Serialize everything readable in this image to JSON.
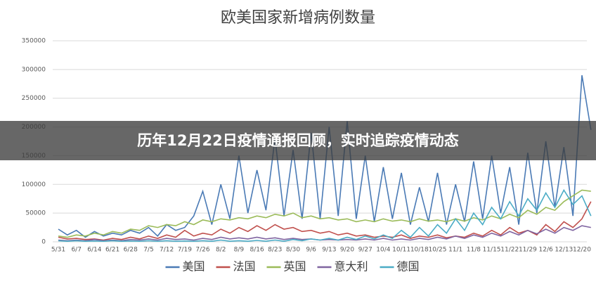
{
  "chart_data": {
    "type": "line",
    "title": "欧美国家新增病例数量",
    "banner": "历年12月22日疫情通报回顾，实时追踪疫情动态",
    "categories": [
      "5/31",
      null,
      "6/7",
      null,
      "6/14",
      null,
      "6/21",
      null,
      "6/28",
      null,
      "7/5",
      null,
      "7/12",
      null,
      "7/19",
      null,
      "7/26",
      null,
      "8/2",
      null,
      "8/9",
      null,
      "8/16",
      null,
      "8/23",
      null,
      "8/30",
      null,
      "9/6",
      null,
      "9/13",
      null,
      "9/20",
      null,
      "9/27",
      null,
      "10/4",
      null,
      "10/11",
      null,
      "10/18",
      null,
      "10/25",
      null,
      "11/1",
      null,
      "11/8",
      null,
      "11/15",
      null,
      "11/22",
      null,
      "11/29",
      null,
      "12/6",
      null,
      "12/13",
      null,
      "12/20",
      null
    ],
    "series": [
      {
        "name": "美国",
        "color": "#4a7ab5",
        "values": [
          22000,
          12000,
          20000,
          8000,
          18000,
          10000,
          15000,
          12000,
          20000,
          15000,
          25000,
          10000,
          30000,
          20000,
          25000,
          45000,
          88000,
          30000,
          100000,
          40000,
          150000,
          50000,
          125000,
          55000,
          180000,
          45000,
          160000,
          40000,
          190000,
          40000,
          200000,
          45000,
          210000,
          40000,
          150000,
          35000,
          130000,
          40000,
          120000,
          30000,
          95000,
          35000,
          120000,
          30000,
          100000,
          35000,
          140000,
          40000,
          150000,
          50000,
          130000,
          30000,
          155000,
          50000,
          175000,
          60000,
          165000,
          45000,
          290000,
          195000
        ]
      },
      {
        "name": "法国",
        "color": "#c0504d",
        "values": [
          8000,
          5000,
          6000,
          4000,
          5000,
          3000,
          6000,
          4000,
          8000,
          5000,
          10000,
          6000,
          12000,
          8000,
          20000,
          10000,
          15000,
          12000,
          22000,
          15000,
          25000,
          18000,
          28000,
          20000,
          30000,
          22000,
          25000,
          18000,
          20000,
          15000,
          18000,
          12000,
          15000,
          10000,
          12000,
          8000,
          10000,
          8000,
          12000,
          6000,
          10000,
          8000,
          12000,
          7000,
          10000,
          8000,
          15000,
          10000,
          20000,
          12000,
          25000,
          15000,
          20000,
          12000,
          30000,
          18000,
          35000,
          25000,
          40000,
          70000
        ]
      },
      {
        "name": "英国",
        "color": "#9bbb59",
        "values": [
          10000,
          8000,
          12000,
          10000,
          15000,
          12000,
          18000,
          15000,
          22000,
          20000,
          28000,
          25000,
          30000,
          28000,
          35000,
          30000,
          38000,
          35000,
          40000,
          38000,
          42000,
          40000,
          45000,
          42000,
          48000,
          45000,
          50000,
          42000,
          45000,
          40000,
          42000,
          38000,
          40000,
          35000,
          38000,
          35000,
          40000,
          36000,
          38000,
          35000,
          40000,
          36000,
          38000,
          35000,
          40000,
          36000,
          42000,
          38000,
          45000,
          40000,
          48000,
          42000,
          55000,
          48000,
          60000,
          55000,
          70000,
          80000,
          90000,
          88000
        ]
      },
      {
        "name": "意大利",
        "color": "#7f64a0",
        "values": [
          3000,
          2000,
          3000,
          2000,
          4000,
          2000,
          3000,
          2000,
          4000,
          3000,
          5000,
          3000,
          6000,
          4000,
          5000,
          3000,
          6000,
          4000,
          8000,
          5000,
          7000,
          5000,
          8000,
          5000,
          7000,
          4000,
          6000,
          4000,
          5000,
          3000,
          4000,
          3000,
          4000,
          3000,
          5000,
          3000,
          6000,
          3000,
          5000,
          3000,
          6000,
          4000,
          8000,
          5000,
          10000,
          6000,
          12000,
          8000,
          15000,
          10000,
          18000,
          12000,
          20000,
          14000,
          22000,
          15000,
          25000,
          20000,
          28000,
          25000
        ]
      },
      {
        "name": "德国",
        "color": "#4bacc6",
        "values": [
          2000,
          1000,
          2000,
          1000,
          1500,
          1000,
          2000,
          1000,
          1500,
          1000,
          2000,
          1000,
          2000,
          1000,
          1500,
          1000,
          2000,
          1000,
          3000,
          1000,
          2000,
          1000,
          2500,
          1000,
          3000,
          1000,
          4000,
          2000,
          5000,
          3000,
          6000,
          3000,
          8000,
          4000,
          10000,
          5000,
          12000,
          6000,
          20000,
          8000,
          25000,
          10000,
          30000,
          15000,
          40000,
          20000,
          50000,
          30000,
          60000,
          40000,
          70000,
          45000,
          75000,
          55000,
          85000,
          60000,
          90000,
          65000,
          80000,
          45000
        ]
      }
    ],
    "ylim": [
      0,
      350000
    ],
    "yticks": [
      0,
      50000,
      100000,
      150000,
      200000,
      250000,
      300000,
      350000
    ],
    "grid": true
  }
}
